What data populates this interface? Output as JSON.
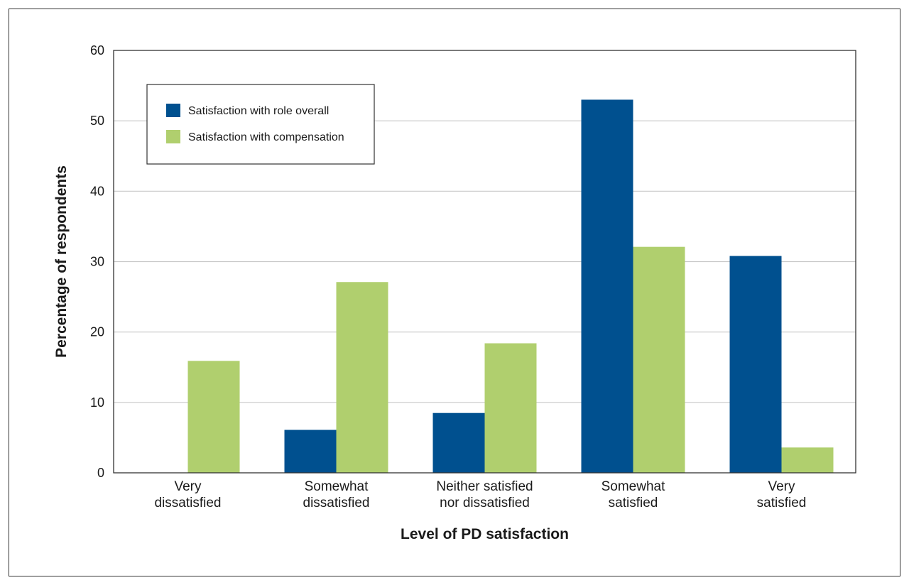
{
  "chart_data": {
    "type": "bar",
    "title": "",
    "xlabel": "Level of PD satisfaction",
    "ylabel": "Percentage of respondents",
    "ylim": [
      0,
      60
    ],
    "yticks": [
      0,
      10,
      20,
      30,
      40,
      50,
      60
    ],
    "grid": true,
    "legend_position": "top-left",
    "categories": [
      [
        "Very",
        "dissatisfied"
      ],
      [
        "Somewhat",
        "dissatisfied"
      ],
      [
        "Neither satisfied",
        "nor dissatisfied"
      ],
      [
        "Somewhat",
        "satisfied"
      ],
      [
        "Very",
        "satisfied"
      ]
    ],
    "series": [
      {
        "name": "Satisfaction with role overall",
        "color": "#00508f",
        "values": [
          0,
          6.1,
          8.5,
          53,
          30.8
        ]
      },
      {
        "name": "Satisfaction with compensation",
        "color": "#b0cf6e",
        "values": [
          15.9,
          27.1,
          18.4,
          32.1,
          3.6
        ]
      }
    ]
  }
}
